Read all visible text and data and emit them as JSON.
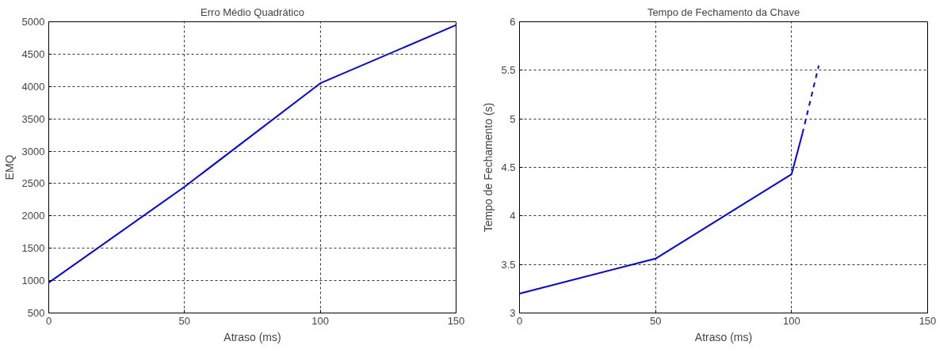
{
  "chart_data": [
    {
      "type": "line",
      "title": "Erro Médio Quadrático",
      "xlabel": "Atraso (ms)",
      "ylabel": "EMQ",
      "x": [
        0,
        50,
        100,
        150
      ],
      "series": [
        {
          "color": "#0000ff",
          "values": [
            970,
            2450,
            4050,
            4950
          ]
        }
      ],
      "xlim": [
        0,
        150
      ],
      "xticks": [
        0,
        50,
        100,
        150
      ],
      "ylim": [
        500,
        5000
      ],
      "yticks": [
        500,
        1000,
        1500,
        2000,
        2500,
        3000,
        3500,
        4000,
        4500,
        5000
      ],
      "grid": true
    },
    {
      "type": "line",
      "title": "Tempo de Fechamento da Chave",
      "xlabel": "Atraso (ms)",
      "ylabel": "Tempo de Fechamento (s)",
      "series": [
        {
          "color": "#0000ff",
          "x": [
            0,
            50,
            100,
            104
          ],
          "values": [
            3.2,
            3.56,
            4.43,
            4.85
          ],
          "line_style": "solid"
        },
        {
          "color": "#0000ff",
          "x": [
            104,
            110
          ],
          "values": [
            4.85,
            5.55
          ],
          "line_style": "dashed"
        }
      ],
      "xlim": [
        0,
        150
      ],
      "xticks": [
        0,
        50,
        100,
        150
      ],
      "ylim": [
        3,
        6
      ],
      "yticks": [
        3,
        3.5,
        4,
        4.5,
        5,
        5.5,
        6
      ],
      "grid": true
    }
  ]
}
